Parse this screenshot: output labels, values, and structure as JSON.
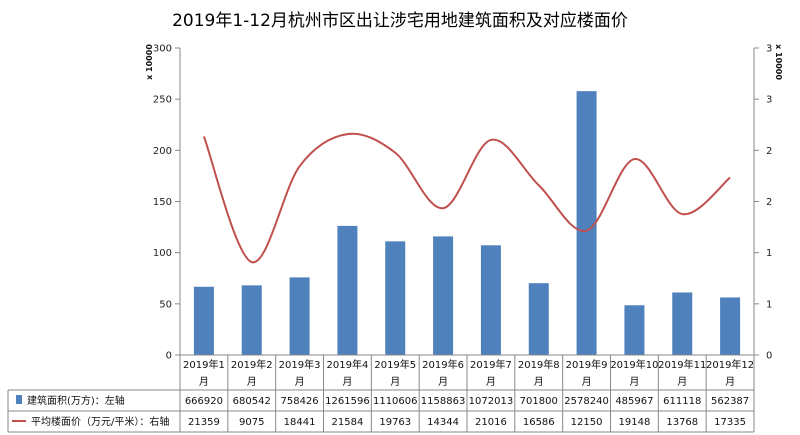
{
  "chart_data": {
    "type": "bar",
    "title": "2019年1-12月杭州市区出让涉宅用地建筑面积及对应楼面价",
    "categories": [
      "2019年1月",
      "2019年2月",
      "2019年3月",
      "2019年4月",
      "2019年5月",
      "2019年6月",
      "2019年7月",
      "2019年8月",
      "2019年9月",
      "2019年10月",
      "2019年11月",
      "2019年12月"
    ],
    "category_lines": [
      [
        "2019年1",
        "月"
      ],
      [
        "2019年2",
        "月"
      ],
      [
        "2019年3",
        "月"
      ],
      [
        "2019年4",
        "月"
      ],
      [
        "2019年5",
        "月"
      ],
      [
        "2019年6",
        "月"
      ],
      [
        "2019年7",
        "月"
      ],
      [
        "2019年8",
        "月"
      ],
      [
        "2019年9",
        "月"
      ],
      [
        "2019年10",
        "月"
      ],
      [
        "2019年11",
        "月"
      ],
      [
        "2019年12",
        "月"
      ]
    ],
    "series": [
      {
        "name": "建筑面积(万方)：左轴",
        "type": "bar",
        "axis": "left",
        "color": "#4f81bd",
        "values": [
          666920,
          680542,
          758426,
          1261596,
          1110606,
          1158863,
          1072013,
          701800,
          2578240,
          485967,
          611118,
          562387
        ]
      },
      {
        "name": "平均楼面价（万元/平米）：右轴",
        "type": "line",
        "axis": "right",
        "color": "#c0504d",
        "values": [
          21359,
          9075,
          18441,
          21584,
          19763,
          14344,
          21016,
          16586,
          12150,
          19148,
          13768,
          17335
        ]
      }
    ],
    "left_axis": {
      "ylim": [
        0,
        300
      ],
      "ticks": [
        "0",
        "50",
        "100",
        "150",
        "200",
        "250",
        "300"
      ],
      "scale_label": "x 10000"
    },
    "right_axis": {
      "ylim": [
        0,
        3
      ],
      "ticks": [
        "0",
        "1",
        "1",
        "2",
        "2",
        "3",
        "3"
      ],
      "scale_label": "x 10000"
    },
    "grid": false,
    "legend_position": "table-below"
  }
}
